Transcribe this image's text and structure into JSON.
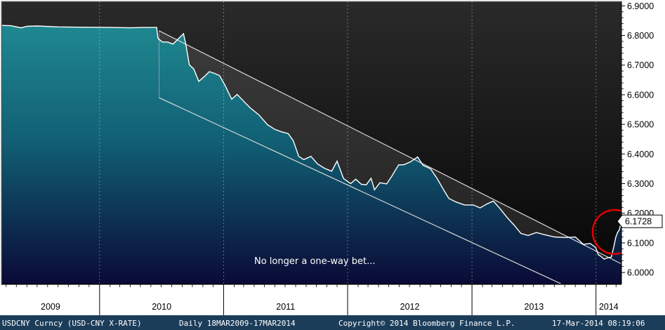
{
  "chart_data": {
    "type": "area",
    "title": "",
    "xlabel": "",
    "ylabel": "",
    "x_range": [
      "2009-03-18",
      "2014-03-17"
    ],
    "ylim": [
      5.96,
      6.915
    ],
    "y_ticks": [
      "6.0000",
      "6.1000",
      "6.2000",
      "6.3000",
      "6.4000",
      "6.5000",
      "6.6000",
      "6.7000",
      "6.8000",
      "6.9000"
    ],
    "x_year_labels": [
      "2009",
      "2010",
      "2011",
      "2012",
      "2013",
      "2014"
    ],
    "grid": false,
    "series": [
      {
        "values": [
          [
            "2009-03-18",
            6.834
          ],
          [
            "2009-04-15",
            6.833
          ],
          [
            "2009-05-15",
            6.826
          ],
          [
            "2009-06-01",
            6.831
          ],
          [
            "2009-07-01",
            6.832
          ],
          [
            "2009-09-01",
            6.829
          ],
          [
            "2009-11-01",
            6.828
          ],
          [
            "2010-02-01",
            6.827
          ],
          [
            "2010-04-01",
            6.826
          ],
          [
            "2010-05-10",
            6.827
          ],
          [
            "2010-06-18",
            6.827
          ],
          [
            "2010-06-22",
            6.79
          ],
          [
            "2010-07-05",
            6.778
          ],
          [
            "2010-07-20",
            6.778
          ],
          [
            "2010-08-05",
            6.771
          ],
          [
            "2010-08-25",
            6.794
          ],
          [
            "2010-09-05",
            6.806
          ],
          [
            "2010-09-12",
            6.77
          ],
          [
            "2010-09-22",
            6.701
          ],
          [
            "2010-10-05",
            6.687
          ],
          [
            "2010-10-20",
            6.645
          ],
          [
            "2010-11-05",
            6.661
          ],
          [
            "2010-11-20",
            6.678
          ],
          [
            "2010-12-05",
            6.672
          ],
          [
            "2010-12-20",
            6.665
          ],
          [
            "2011-01-05",
            6.632
          ],
          [
            "2011-01-25",
            6.585
          ],
          [
            "2011-02-10",
            6.601
          ],
          [
            "2011-03-01",
            6.578
          ],
          [
            "2011-03-20",
            6.556
          ],
          [
            "2011-04-15",
            6.532
          ],
          [
            "2011-05-10",
            6.499
          ],
          [
            "2011-06-01",
            6.483
          ],
          [
            "2011-06-20",
            6.475
          ],
          [
            "2011-07-10",
            6.469
          ],
          [
            "2011-07-25",
            6.445
          ],
          [
            "2011-08-10",
            6.392
          ],
          [
            "2011-08-25",
            6.381
          ],
          [
            "2011-09-15",
            6.392
          ],
          [
            "2011-10-05",
            6.366
          ],
          [
            "2011-10-25",
            6.352
          ],
          [
            "2011-11-15",
            6.342
          ],
          [
            "2011-12-01",
            6.376
          ],
          [
            "2011-12-20",
            6.317
          ],
          [
            "2012-01-10",
            6.3
          ],
          [
            "2012-01-25",
            6.315
          ],
          [
            "2012-02-10",
            6.298
          ],
          [
            "2012-02-25",
            6.296
          ],
          [
            "2012-03-10",
            6.318
          ],
          [
            "2012-03-20",
            6.279
          ],
          [
            "2012-04-05",
            6.303
          ],
          [
            "2012-04-25",
            6.299
          ],
          [
            "2012-05-10",
            6.325
          ],
          [
            "2012-05-30",
            6.363
          ],
          [
            "2012-06-15",
            6.364
          ],
          [
            "2012-07-05",
            6.374
          ],
          [
            "2012-07-25",
            6.39
          ],
          [
            "2012-08-10",
            6.362
          ],
          [
            "2012-09-01",
            6.35
          ],
          [
            "2012-09-20",
            6.318
          ],
          [
            "2012-10-10",
            6.278
          ],
          [
            "2012-10-25",
            6.25
          ],
          [
            "2012-11-15",
            6.238
          ],
          [
            "2012-12-10",
            6.228
          ],
          [
            "2013-01-05",
            6.228
          ],
          [
            "2013-01-25",
            6.218
          ],
          [
            "2013-02-15",
            6.232
          ],
          [
            "2013-03-05",
            6.241
          ],
          [
            "2013-03-25",
            6.215
          ],
          [
            "2013-04-15",
            6.185
          ],
          [
            "2013-05-05",
            6.16
          ],
          [
            "2013-05-25",
            6.132
          ],
          [
            "2013-06-15",
            6.125
          ],
          [
            "2013-07-10",
            6.135
          ],
          [
            "2013-08-01",
            6.128
          ],
          [
            "2013-09-01",
            6.12
          ],
          [
            "2013-10-05",
            6.118
          ],
          [
            "2013-11-01",
            6.12
          ],
          [
            "2013-11-25",
            6.095
          ],
          [
            "2013-12-15",
            6.098
          ],
          [
            "2013-12-31",
            6.085
          ],
          [
            "2014-01-08",
            6.06
          ],
          [
            "2014-01-15",
            6.055
          ],
          [
            "2014-01-25",
            6.045
          ],
          [
            "2014-02-05",
            6.05
          ],
          [
            "2014-02-15",
            6.052
          ],
          [
            "2014-02-22",
            6.085
          ],
          [
            "2014-02-28",
            6.118
          ],
          [
            "2014-03-05",
            6.134
          ],
          [
            "2014-03-11",
            6.145
          ],
          [
            "2014-03-14",
            6.16
          ],
          [
            "2014-03-17",
            6.1728
          ]
        ]
      }
    ],
    "channel": {
      "upper": [
        [
          "2010-06-25",
          6.816
        ],
        [
          "2014-03-17",
          6.029
        ]
      ],
      "lower": [
        [
          "2010-06-25",
          6.59
        ],
        [
          "2013-09-20",
          5.962
        ]
      ]
    },
    "last_value_label": "6.1728",
    "annotation": "No longer a one-way bet...",
    "highlight_circle": {
      "center": [
        "2014-02-25",
        6.137
      ],
      "radius_months": 1.9
    },
    "colors": {
      "plot_top": "#262626",
      "plot_bottom": "#000000",
      "area_top": "#1f8890",
      "area_bottom": "#0a0a35",
      "line": "#ffffff",
      "channel": "#d8d8d8",
      "circle": "#e00000",
      "axis_bg": "#ffffff",
      "footer_bg": "#1c3d5a"
    }
  },
  "footer": {
    "ticker": "USDCNY Curncy (USD-CNY X-RATE)",
    "range": "Daily 18MAR2009-17MAR2014",
    "copyright": "Copyright© 2014 Bloomberg Finance L.P.",
    "timestamp": "17-Mar-2014 08:19:06"
  }
}
